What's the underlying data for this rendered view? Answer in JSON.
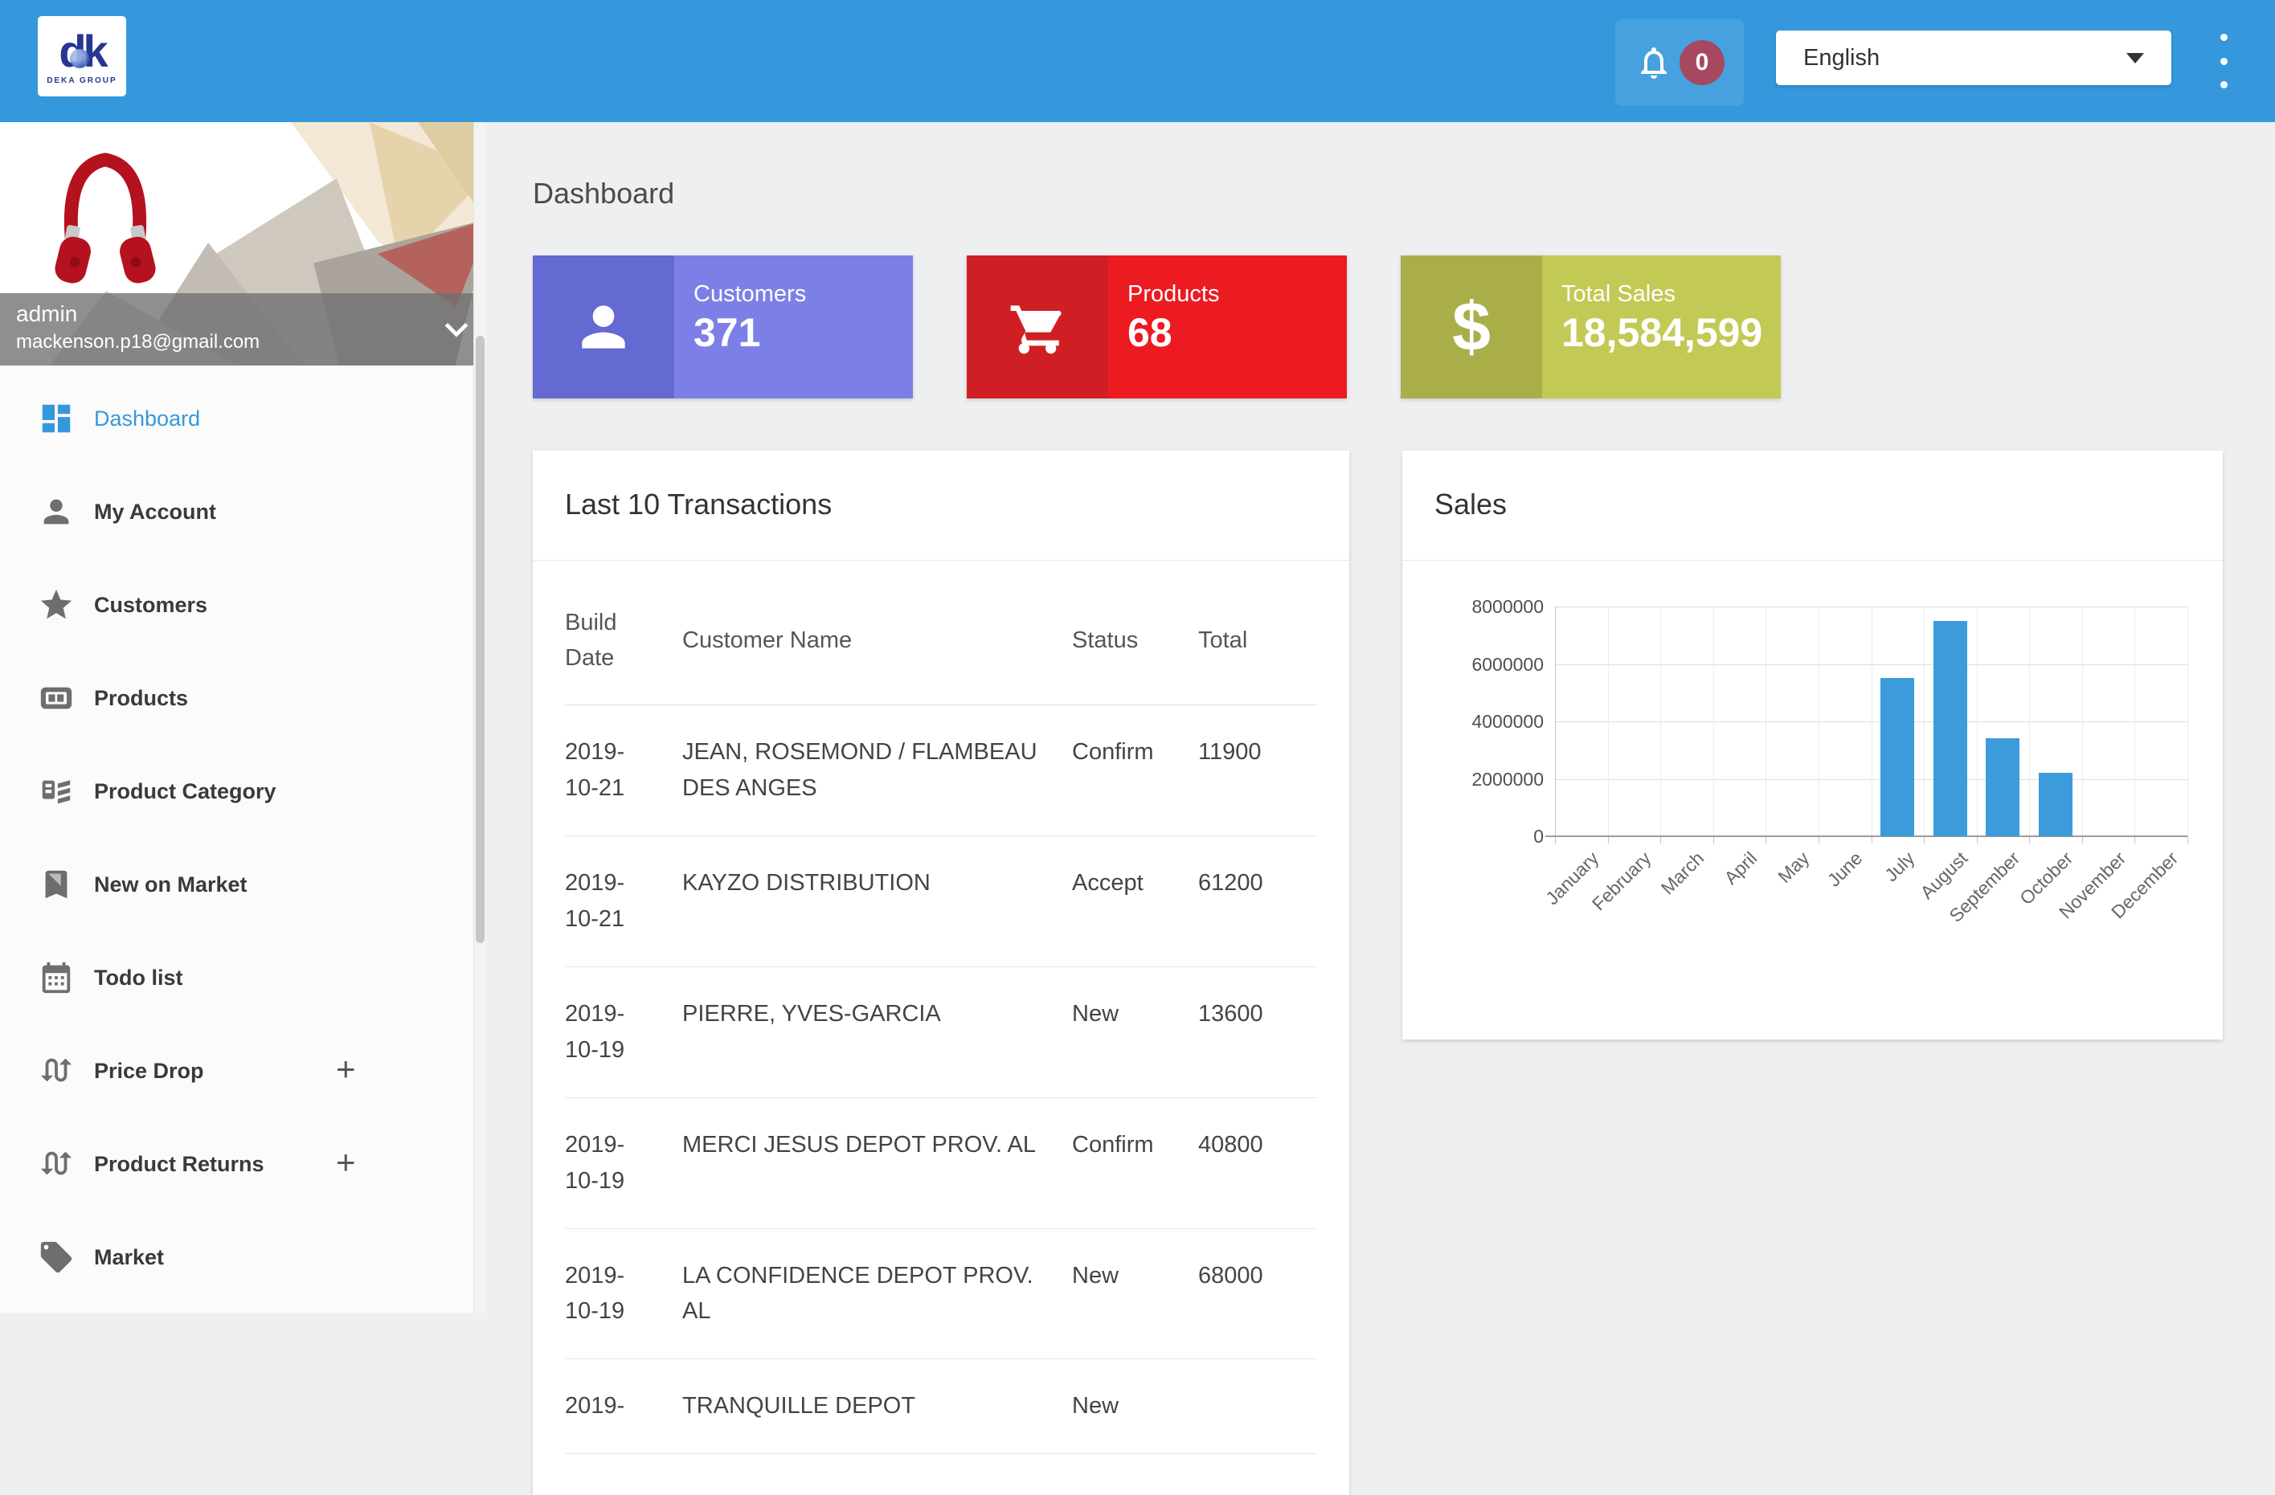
{
  "topbar": {
    "logo": {
      "text": "dk",
      "caption": "DEKA GROUP"
    },
    "notifications": {
      "count": "0"
    },
    "language": {
      "selected": "English"
    },
    "colors": {
      "bar": "#3598DC",
      "badge": "#A6485F"
    }
  },
  "sidebar": {
    "profile": {
      "name": "admin",
      "email": "mackenson.p18@gmail.com"
    },
    "items": [
      {
        "label": "Dashboard",
        "icon": "dashboard-icon",
        "active": true
      },
      {
        "label": "My Account",
        "icon": "person-icon"
      },
      {
        "label": "Customers",
        "icon": "star-icon"
      },
      {
        "label": "Products",
        "icon": "products-icon"
      },
      {
        "label": "Product Category",
        "icon": "category-icon"
      },
      {
        "label": "New on Market",
        "icon": "bookmark-icon"
      },
      {
        "label": "Todo list",
        "icon": "calendar-icon"
      },
      {
        "label": "Price Drop",
        "icon": "swap-icon",
        "plus": "+"
      },
      {
        "label": "Product Returns",
        "icon": "swap-icon",
        "plus": "+"
      },
      {
        "label": "Market",
        "icon": "tag-icon"
      }
    ]
  },
  "main": {
    "page_title": "Dashboard",
    "stat_cards": [
      {
        "label": "Customers",
        "value": "371",
        "icon": "person-icon",
        "color_left": "#6569D2",
        "color_right": "#7C80E6"
      },
      {
        "label": "Products",
        "value": "68",
        "icon": "cart-icon",
        "color_left": "#D01F24",
        "color_right": "#EC1B22"
      },
      {
        "label": "Total Sales",
        "value": "18,584,599",
        "icon": "dollar-icon",
        "color_left": "#A9AE49",
        "color_right": "#C3C955"
      }
    ],
    "transactions": {
      "title": "Last 10 Transactions",
      "columns": [
        "Build Date",
        "Customer Name",
        "Status",
        "Total"
      ],
      "rows": [
        [
          "2019-10-21",
          "JEAN, ROSEMOND / FLAMBEAU DES ANGES",
          "Confirm",
          "11900"
        ],
        [
          "2019-10-21",
          "KAYZO DISTRIBUTION",
          "Accept",
          "61200"
        ],
        [
          "2019-10-19",
          "PIERRE, YVES-GARCIA",
          "New",
          "13600"
        ],
        [
          "2019-10-19",
          "MERCI JESUS DEPOT PROV. AL",
          "Confirm",
          "40800"
        ],
        [
          "2019-10-19",
          "LA CONFIDENCE DEPOT PROV. AL",
          "New",
          "68000"
        ],
        [
          "2019-",
          "TRANQUILLE DEPOT",
          "New",
          ""
        ]
      ]
    }
  },
  "chart_data": {
    "type": "bar",
    "title": "Sales",
    "categories": [
      "January",
      "February",
      "March",
      "April",
      "May",
      "June",
      "July",
      "August",
      "September",
      "October",
      "November",
      "December"
    ],
    "values": [
      0,
      0,
      0,
      0,
      0,
      0,
      5500000,
      7500000,
      3400000,
      2200000,
      0,
      0
    ],
    "xlabel": "",
    "ylabel": "",
    "ylim": [
      0,
      8000000
    ],
    "yticks": [
      8000000,
      6000000,
      4000000,
      2000000,
      0
    ],
    "grid": true,
    "legend": false,
    "bar_color": "#3C9BDB"
  }
}
